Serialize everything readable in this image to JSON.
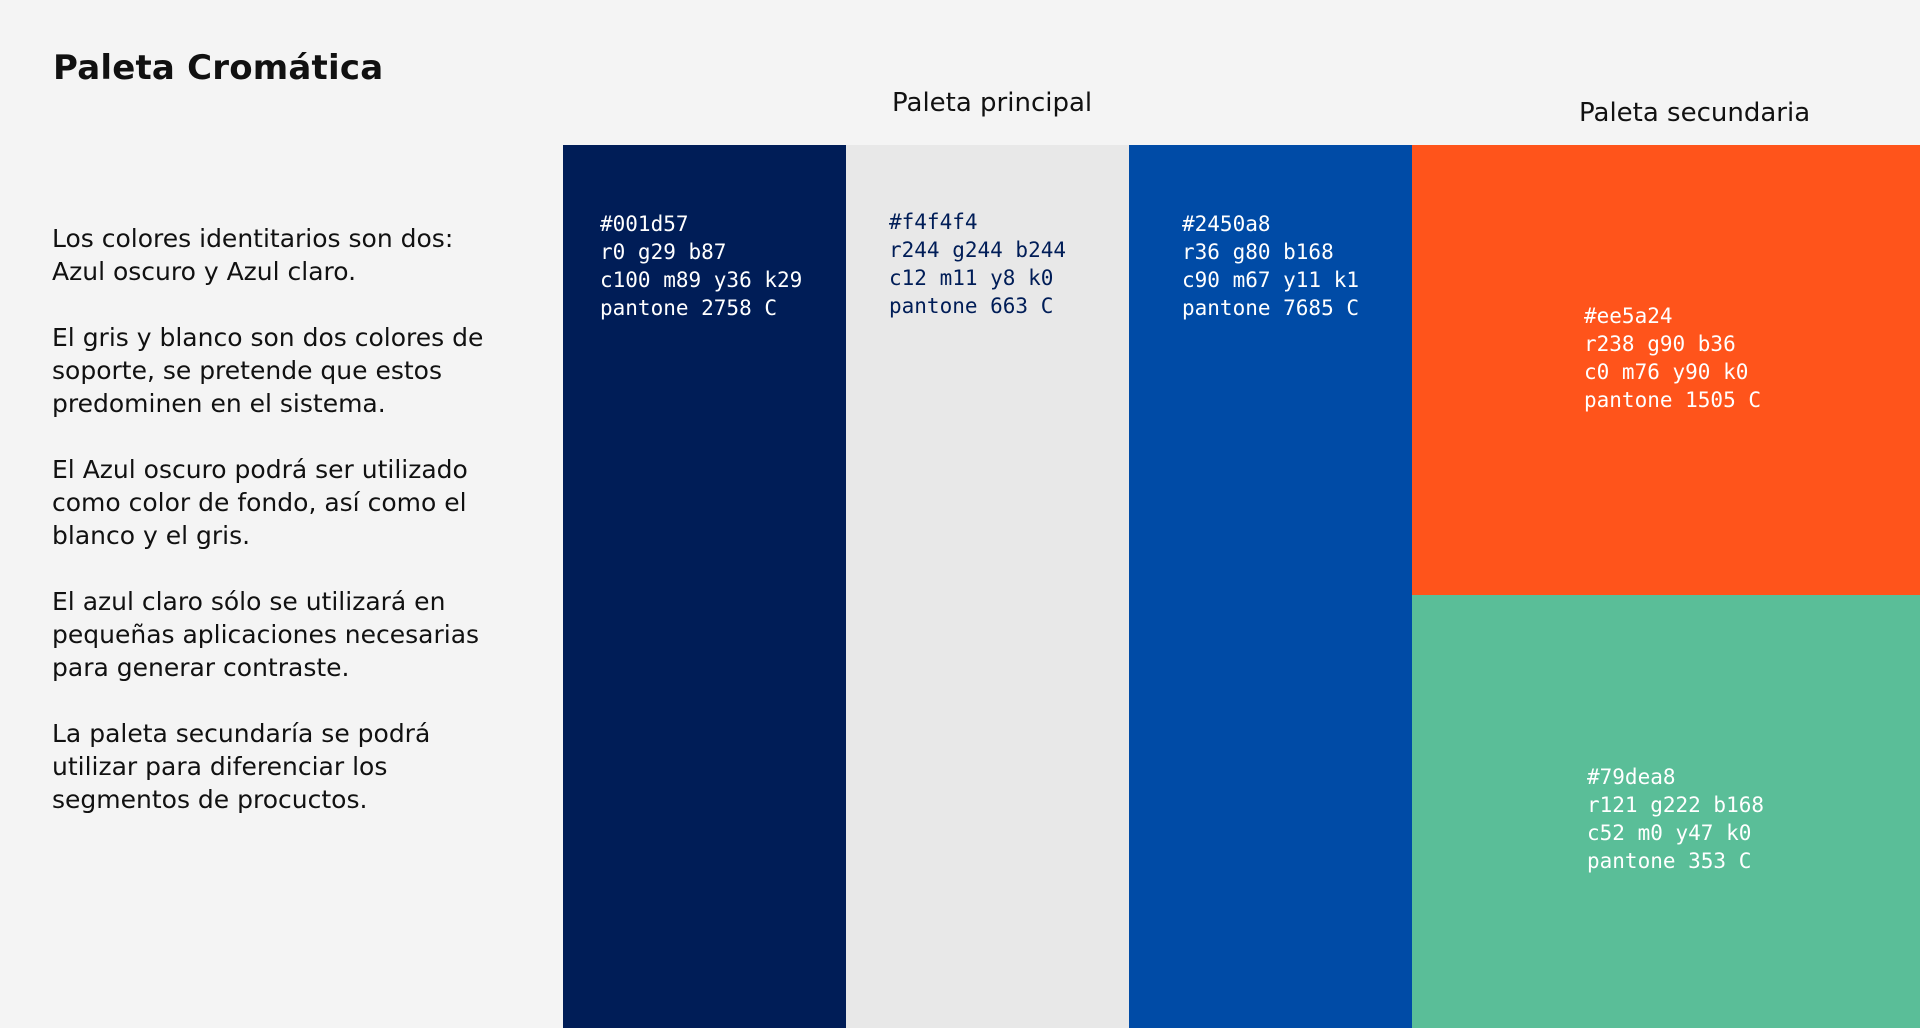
{
  "title": "Paleta Cromática",
  "description": {
    "paragraphs": [
      "Los colores identitarios son dos:\nAzul oscuro y Azul claro.",
      "El gris y blanco son dos colores de\nsoporte, se pretende que estos\npredominen en el sistema.",
      "El Azul oscuro podrá ser utilizado\ncomo color de fondo, así como el\nblanco y el gris.",
      "El azul claro sólo se utilizará en\npequeñas aplicaciones necesarias\npara generar contraste.",
      "La paleta secundaría se podrá\nutilizar para diferenciar los\nsegmentos de procuctos."
    ]
  },
  "palettes": {
    "principal_label": "Paleta principal",
    "secundaria_label": "Paleta secundaria"
  },
  "swatches": [
    {
      "hex": "#001d57",
      "rgb": "r0 g29 b87",
      "cmyk": "c100 m89 y36 k29",
      "pantone": "pantone 2758 C",
      "text_color": "#ffffff"
    },
    {
      "hex": "#f4f4f4",
      "rgb": "r244 g244 b244",
      "cmyk": "c12 m11 y8 k0",
      "pantone": "pantone 663 C",
      "text_color": "#001d57",
      "display_fill": "#e8e8e8"
    },
    {
      "hex": "#2450a8",
      "rgb": "r36 g80 b168",
      "cmyk": "c90 m67 y11 k1",
      "pantone": "pantone 7685 C",
      "text_color": "#ffffff",
      "display_fill": "#004ba6"
    },
    {
      "hex": "#ee5a24",
      "rgb": "r238 g90 b36",
      "cmyk": "c0 m76 y90 k0",
      "pantone": "pantone 1505 C",
      "text_color": "#ffffff",
      "display_fill": "#ff541b"
    },
    {
      "hex": "#79dea8",
      "rgb": "r121 g222 b168",
      "cmyk": "c52 m0 y47 k0",
      "pantone": "pantone 353 C",
      "text_color": "#ffffff",
      "display_fill": "#5abe98"
    }
  ]
}
